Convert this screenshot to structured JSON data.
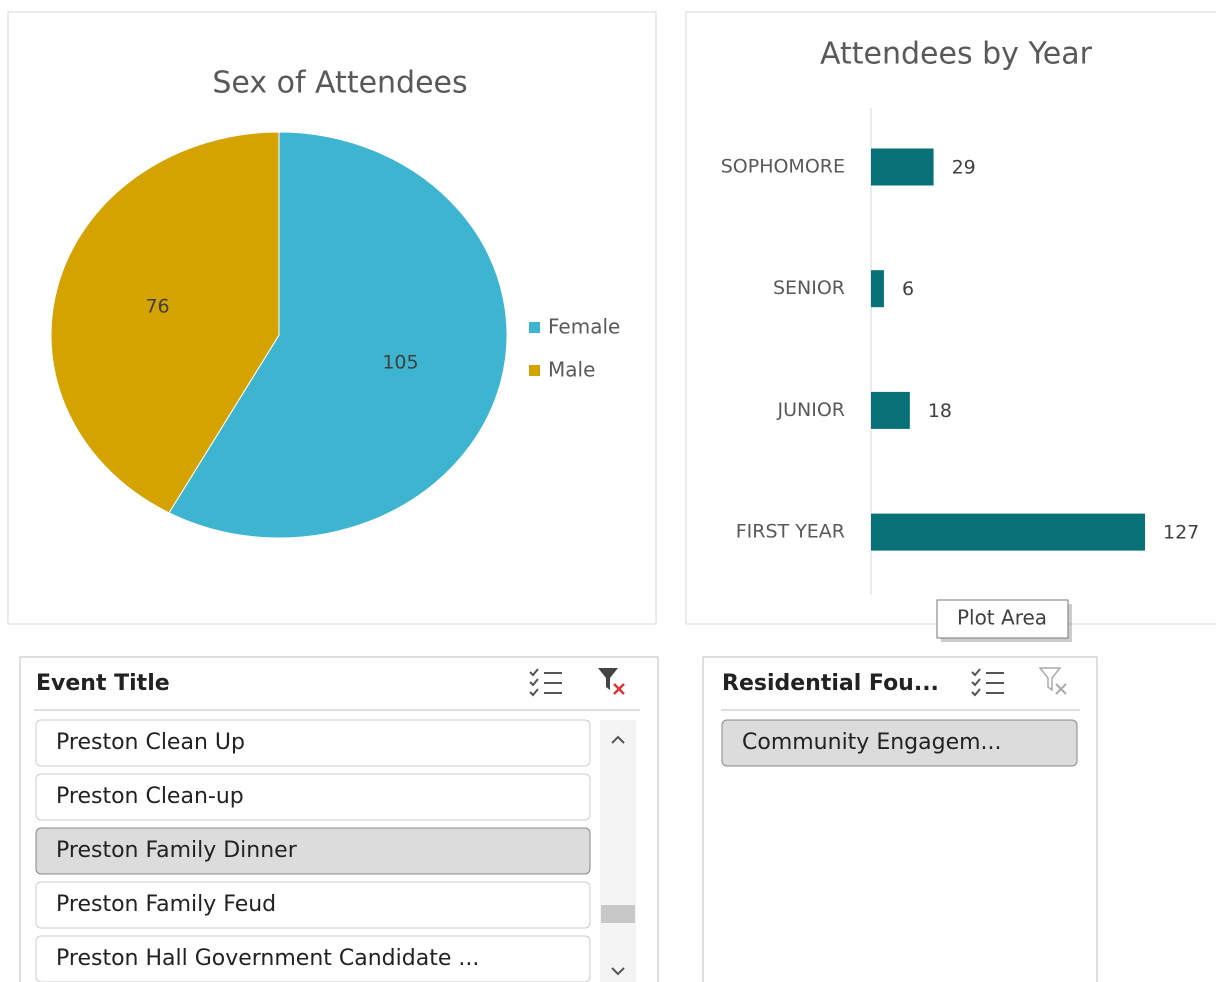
{
  "chart_data": [
    {
      "type": "pie",
      "title": "Sex of Attendees",
      "categories": [
        "Female",
        "Male"
      ],
      "values": [
        105,
        76
      ],
      "colors": [
        "#3db5d0",
        "#d4a300"
      ],
      "legend": "right"
    },
    {
      "type": "hbar",
      "title": "Attendees by Year",
      "categories": [
        "SOPHOMORE",
        "SENIOR",
        "JUNIOR",
        "FIRST YEAR"
      ],
      "values": [
        29,
        6,
        18,
        127
      ],
      "color": "#087178"
    }
  ],
  "tooltip": "Plot Area",
  "slicers": [
    {
      "title": "Event Title",
      "items": [
        "Preston Clean Up",
        "Preston Clean-up",
        "Preston Family Dinner",
        "Preston Family Feud",
        "Preston Hall Government Candidate ..."
      ],
      "selected_index": 2
    },
    {
      "title": "Residential Fou...",
      "items": [
        "Community Engagem..."
      ],
      "selected_index": 0
    }
  ]
}
